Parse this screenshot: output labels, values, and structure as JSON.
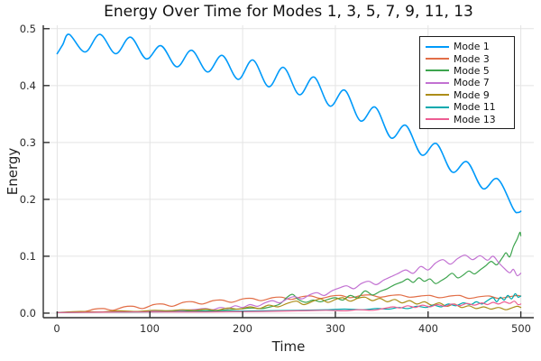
{
  "window": {
    "title": "Energy Over Time for Modes 1, 3, 5, 7, 9, 11, 13"
  },
  "chart_data": {
    "type": "line",
    "title": "Energy Over Time for Modes 1, 3, 5, 7, 9, 11, 13",
    "xlabel": "Time",
    "ylabel": "Energy",
    "xlim": [
      -15,
      514
    ],
    "ylim": [
      -0.008,
      0.506
    ],
    "xticks": [
      "0",
      "100",
      "200",
      "300",
      "400",
      "500"
    ],
    "xtick_values": [
      0,
      100,
      200,
      300,
      400,
      500
    ],
    "yticks": [
      "0.0",
      "0.1",
      "0.2",
      "0.3",
      "0.4",
      "0.5"
    ],
    "ytick_values": [
      0.0,
      0.1,
      0.2,
      0.3,
      0.4,
      0.5
    ],
    "grid": true,
    "axis_color": "#2f2f2f",
    "grid_color": "#e4e4e4",
    "legend": {
      "position": "top-right"
    },
    "series": [
      {
        "name": "Mode 1",
        "color": "#009afa",
        "width": 1.6,
        "points": [
          [
            0,
            0.456
          ],
          [
            6,
            0.472
          ],
          [
            13,
            0.49
          ],
          [
            30,
            0.459
          ],
          [
            46,
            0.49
          ],
          [
            63,
            0.456
          ],
          [
            79,
            0.485
          ],
          [
            96,
            0.447
          ],
          [
            112,
            0.47
          ],
          [
            129,
            0.433
          ],
          [
            145,
            0.462
          ],
          [
            162,
            0.424
          ],
          [
            178,
            0.453
          ],
          [
            195,
            0.411
          ],
          [
            211,
            0.445
          ],
          [
            228,
            0.398
          ],
          [
            244,
            0.432
          ],
          [
            261,
            0.384
          ],
          [
            277,
            0.415
          ],
          [
            294,
            0.364
          ],
          [
            310,
            0.392
          ],
          [
            327,
            0.338
          ],
          [
            343,
            0.362
          ],
          [
            360,
            0.308
          ],
          [
            376,
            0.33
          ],
          [
            393,
            0.278
          ],
          [
            409,
            0.298
          ],
          [
            426,
            0.248
          ],
          [
            442,
            0.266
          ],
          [
            459,
            0.219
          ],
          [
            475,
            0.236
          ],
          [
            492,
            0.183
          ],
          [
            497,
            0.177
          ],
          [
            500,
            0.179
          ]
        ]
      },
      {
        "name": "Mode 3",
        "color": "#e26e47",
        "width": 1.2,
        "points": [
          [
            0,
            0.001
          ],
          [
            15,
            0.002
          ],
          [
            30,
            0.003
          ],
          [
            40,
            0.007
          ],
          [
            50,
            0.008
          ],
          [
            60,
            0.005
          ],
          [
            72,
            0.011
          ],
          [
            82,
            0.012
          ],
          [
            92,
            0.008
          ],
          [
            104,
            0.015
          ],
          [
            114,
            0.016
          ],
          [
            124,
            0.012
          ],
          [
            136,
            0.019
          ],
          [
            146,
            0.02
          ],
          [
            156,
            0.016
          ],
          [
            168,
            0.022
          ],
          [
            178,
            0.023
          ],
          [
            188,
            0.019
          ],
          [
            200,
            0.025
          ],
          [
            210,
            0.026
          ],
          [
            220,
            0.022
          ],
          [
            232,
            0.027
          ],
          [
            242,
            0.028
          ],
          [
            252,
            0.024
          ],
          [
            264,
            0.029
          ],
          [
            274,
            0.03
          ],
          [
            284,
            0.026
          ],
          [
            296,
            0.03
          ],
          [
            306,
            0.031
          ],
          [
            316,
            0.027
          ],
          [
            328,
            0.031
          ],
          [
            338,
            0.032
          ],
          [
            348,
            0.028
          ],
          [
            360,
            0.031
          ],
          [
            370,
            0.032
          ],
          [
            380,
            0.028
          ],
          [
            392,
            0.03
          ],
          [
            402,
            0.031
          ],
          [
            412,
            0.027
          ],
          [
            424,
            0.03
          ],
          [
            434,
            0.031
          ],
          [
            444,
            0.026
          ],
          [
            456,
            0.029
          ],
          [
            466,
            0.03
          ],
          [
            476,
            0.026
          ],
          [
            488,
            0.029
          ],
          [
            496,
            0.031
          ],
          [
            500,
            0.03
          ]
        ]
      },
      {
        "name": "Mode 5",
        "color": "#3da44e",
        "width": 1.2,
        "points": [
          [
            0,
            0.001
          ],
          [
            40,
            0.002
          ],
          [
            80,
            0.002
          ],
          [
            120,
            0.003
          ],
          [
            150,
            0.004
          ],
          [
            175,
            0.005
          ],
          [
            195,
            0.007
          ],
          [
            210,
            0.009
          ],
          [
            220,
            0.008
          ],
          [
            230,
            0.011
          ],
          [
            240,
            0.016
          ],
          [
            248,
            0.028
          ],
          [
            254,
            0.033
          ],
          [
            260,
            0.024
          ],
          [
            268,
            0.019
          ],
          [
            276,
            0.023
          ],
          [
            284,
            0.02
          ],
          [
            292,
            0.024
          ],
          [
            300,
            0.027
          ],
          [
            308,
            0.023
          ],
          [
            316,
            0.031
          ],
          [
            324,
            0.027
          ],
          [
            332,
            0.039
          ],
          [
            340,
            0.032
          ],
          [
            348,
            0.038
          ],
          [
            356,
            0.043
          ],
          [
            364,
            0.05
          ],
          [
            372,
            0.055
          ],
          [
            378,
            0.06
          ],
          [
            384,
            0.054
          ],
          [
            390,
            0.062
          ],
          [
            396,
            0.056
          ],
          [
            402,
            0.06
          ],
          [
            408,
            0.052
          ],
          [
            414,
            0.057
          ],
          [
            420,
            0.063
          ],
          [
            426,
            0.07
          ],
          [
            432,
            0.062
          ],
          [
            438,
            0.067
          ],
          [
            444,
            0.074
          ],
          [
            450,
            0.069
          ],
          [
            456,
            0.076
          ],
          [
            462,
            0.083
          ],
          [
            468,
            0.091
          ],
          [
            474,
            0.085
          ],
          [
            480,
            0.097
          ],
          [
            484,
            0.106
          ],
          [
            488,
            0.099
          ],
          [
            492,
            0.117
          ],
          [
            496,
            0.13
          ],
          [
            499,
            0.142
          ],
          [
            500,
            0.136
          ]
        ]
      },
      {
        "name": "Mode 7",
        "color": "#c271d2",
        "width": 1.2,
        "points": [
          [
            0,
            0.001
          ],
          [
            50,
            0.002
          ],
          [
            90,
            0.003
          ],
          [
            120,
            0.004
          ],
          [
            145,
            0.006
          ],
          [
            160,
            0.008
          ],
          [
            168,
            0.006
          ],
          [
            176,
            0.01
          ],
          [
            184,
            0.008
          ],
          [
            192,
            0.013
          ],
          [
            200,
            0.01
          ],
          [
            208,
            0.015
          ],
          [
            216,
            0.012
          ],
          [
            224,
            0.018
          ],
          [
            232,
            0.022
          ],
          [
            240,
            0.018
          ],
          [
            248,
            0.025
          ],
          [
            256,
            0.029
          ],
          [
            264,
            0.025
          ],
          [
            272,
            0.032
          ],
          [
            280,
            0.036
          ],
          [
            288,
            0.031
          ],
          [
            296,
            0.039
          ],
          [
            304,
            0.044
          ],
          [
            312,
            0.048
          ],
          [
            320,
            0.043
          ],
          [
            328,
            0.052
          ],
          [
            336,
            0.056
          ],
          [
            344,
            0.05
          ],
          [
            352,
            0.058
          ],
          [
            360,
            0.064
          ],
          [
            368,
            0.07
          ],
          [
            376,
            0.076
          ],
          [
            384,
            0.07
          ],
          [
            392,
            0.082
          ],
          [
            400,
            0.076
          ],
          [
            408,
            0.088
          ],
          [
            416,
            0.094
          ],
          [
            424,
            0.086
          ],
          [
            432,
            0.096
          ],
          [
            440,
            0.102
          ],
          [
            448,
            0.094
          ],
          [
            456,
            0.101
          ],
          [
            464,
            0.093
          ],
          [
            470,
            0.1
          ],
          [
            476,
            0.089
          ],
          [
            482,
            0.079
          ],
          [
            488,
            0.071
          ],
          [
            492,
            0.077
          ],
          [
            496,
            0.066
          ],
          [
            500,
            0.07
          ]
        ]
      },
      {
        "name": "Mode 9",
        "color": "#ac8d18",
        "width": 1.2,
        "points": [
          [
            0,
            0.001
          ],
          [
            25,
            0.003
          ],
          [
            45,
            0.002
          ],
          [
            65,
            0.004
          ],
          [
            85,
            0.003
          ],
          [
            105,
            0.005
          ],
          [
            120,
            0.004
          ],
          [
            135,
            0.006
          ],
          [
            148,
            0.005
          ],
          [
            160,
            0.007
          ],
          [
            172,
            0.005
          ],
          [
            184,
            0.009
          ],
          [
            196,
            0.007
          ],
          [
            208,
            0.011
          ],
          [
            218,
            0.008
          ],
          [
            228,
            0.014
          ],
          [
            238,
            0.011
          ],
          [
            248,
            0.017
          ],
          [
            258,
            0.021
          ],
          [
            266,
            0.015
          ],
          [
            276,
            0.021
          ],
          [
            284,
            0.025
          ],
          [
            292,
            0.019
          ],
          [
            300,
            0.024
          ],
          [
            308,
            0.027
          ],
          [
            316,
            0.021
          ],
          [
            324,
            0.026
          ],
          [
            332,
            0.028
          ],
          [
            340,
            0.022
          ],
          [
            348,
            0.026
          ],
          [
            356,
            0.02
          ],
          [
            364,
            0.024
          ],
          [
            372,
            0.018
          ],
          [
            380,
            0.022
          ],
          [
            388,
            0.016
          ],
          [
            396,
            0.02
          ],
          [
            404,
            0.014
          ],
          [
            412,
            0.018
          ],
          [
            420,
            0.012
          ],
          [
            428,
            0.016
          ],
          [
            436,
            0.01
          ],
          [
            444,
            0.013
          ],
          [
            452,
            0.008
          ],
          [
            460,
            0.011
          ],
          [
            468,
            0.007
          ],
          [
            476,
            0.01
          ],
          [
            484,
            0.006
          ],
          [
            490,
            0.009
          ],
          [
            496,
            0.012
          ],
          [
            500,
            0.01
          ]
        ]
      },
      {
        "name": "Mode 11",
        "color": "#00a9ad",
        "width": 1.2,
        "points": [
          [
            0,
            0.001
          ],
          [
            80,
            0.002
          ],
          [
            160,
            0.003
          ],
          [
            220,
            0.004
          ],
          [
            260,
            0.005
          ],
          [
            290,
            0.006
          ],
          [
            310,
            0.007
          ],
          [
            330,
            0.006
          ],
          [
            345,
            0.008
          ],
          [
            358,
            0.007
          ],
          [
            368,
            0.01
          ],
          [
            378,
            0.008
          ],
          [
            388,
            0.012
          ],
          [
            398,
            0.01
          ],
          [
            406,
            0.014
          ],
          [
            414,
            0.011
          ],
          [
            422,
            0.016
          ],
          [
            430,
            0.013
          ],
          [
            438,
            0.018
          ],
          [
            446,
            0.015
          ],
          [
            452,
            0.02
          ],
          [
            458,
            0.016
          ],
          [
            464,
            0.022
          ],
          [
            470,
            0.027
          ],
          [
            474,
            0.02
          ],
          [
            478,
            0.028
          ],
          [
            482,
            0.023
          ],
          [
            486,
            0.031
          ],
          [
            490,
            0.025
          ],
          [
            494,
            0.034
          ],
          [
            497,
            0.028
          ],
          [
            500,
            0.03
          ]
        ]
      },
      {
        "name": "Mode 13",
        "color": "#ed5d92",
        "width": 1.2,
        "points": [
          [
            0,
            0.001
          ],
          [
            80,
            0.002
          ],
          [
            160,
            0.002
          ],
          [
            220,
            0.003
          ],
          [
            260,
            0.004
          ],
          [
            290,
            0.005
          ],
          [
            310,
            0.004
          ],
          [
            325,
            0.006
          ],
          [
            340,
            0.005
          ],
          [
            352,
            0.008
          ],
          [
            362,
            0.011
          ],
          [
            370,
            0.009
          ],
          [
            378,
            0.013
          ],
          [
            386,
            0.01
          ],
          [
            394,
            0.014
          ],
          [
            402,
            0.011
          ],
          [
            410,
            0.015
          ],
          [
            418,
            0.012
          ],
          [
            426,
            0.016
          ],
          [
            434,
            0.013
          ],
          [
            442,
            0.017
          ],
          [
            450,
            0.014
          ],
          [
            458,
            0.018
          ],
          [
            464,
            0.015
          ],
          [
            470,
            0.019
          ],
          [
            476,
            0.016
          ],
          [
            482,
            0.02
          ],
          [
            488,
            0.017
          ],
          [
            493,
            0.021
          ],
          [
            497,
            0.015
          ],
          [
            500,
            0.016
          ]
        ]
      }
    ]
  }
}
